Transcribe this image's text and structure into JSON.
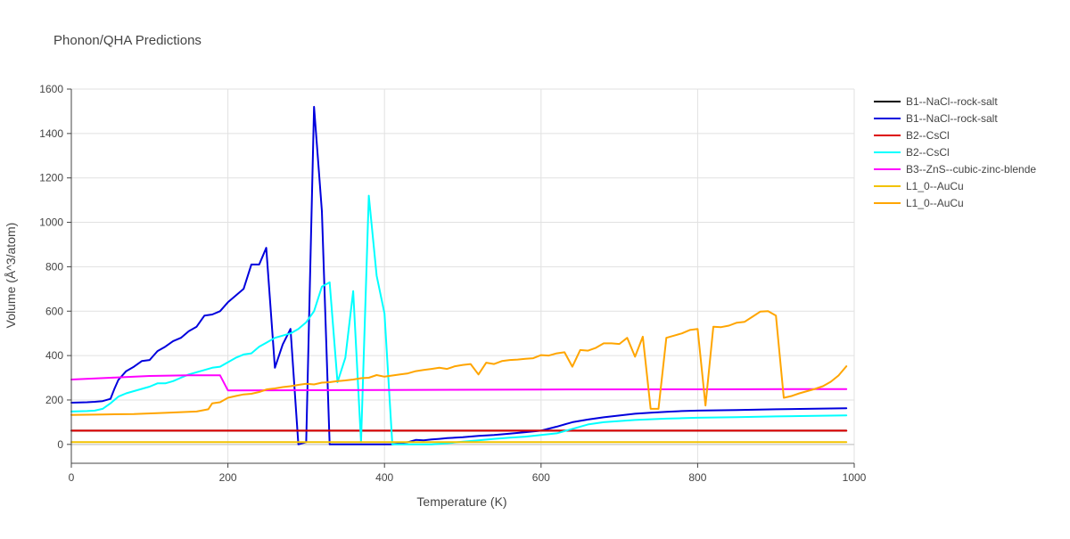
{
  "chart_data": {
    "type": "line",
    "title": "Phonon/QHA Predictions",
    "xlabel": "Temperature (K)",
    "ylabel": "Volume (Å^3/atom)",
    "xlim": [
      0,
      1000
    ],
    "ylim": [
      -85,
      1600
    ],
    "xticks": [
      0,
      200,
      400,
      600,
      800,
      1000
    ],
    "yticks": [
      0,
      200,
      400,
      600,
      800,
      1000,
      1200,
      1400,
      1600
    ],
    "grid": true,
    "legend_position": "right",
    "series": [
      {
        "name": "B1--NaCl--rock-salt",
        "color": "#000000",
        "x": [
          0,
          990
        ],
        "y": [
          62,
          62
        ]
      },
      {
        "name": "B1--NaCl--rock-salt",
        "color": "#0000dd",
        "x": [
          0,
          20,
          30,
          40,
          50,
          55,
          60,
          70,
          80,
          90,
          100,
          110,
          120,
          130,
          140,
          150,
          160,
          170,
          180,
          190,
          200,
          210,
          220,
          230,
          240,
          249,
          260,
          270,
          280,
          290,
          300,
          310,
          320,
          330,
          340,
          350,
          360,
          370,
          380,
          390,
          400,
          410,
          420,
          430,
          440,
          450,
          460,
          470,
          480,
          490,
          500,
          520,
          540,
          560,
          580,
          600,
          620,
          640,
          660,
          680,
          700,
          720,
          740,
          760,
          780,
          800,
          850,
          900,
          950,
          990
        ],
        "y": [
          188,
          190,
          192,
          195,
          205,
          250,
          290,
          330,
          350,
          375,
          380,
          420,
          440,
          465,
          480,
          510,
          530,
          580,
          585,
          600,
          640,
          670,
          700,
          810,
          810,
          885,
          345,
          450,
          520,
          0,
          10,
          1520,
          1050,
          0,
          0,
          0,
          0,
          0,
          0,
          0,
          0,
          0,
          5,
          10,
          20,
          18,
          22,
          25,
          28,
          30,
          32,
          38,
          42,
          48,
          55,
          62,
          80,
          100,
          112,
          122,
          130,
          138,
          143,
          147,
          150,
          152,
          155,
          158,
          161,
          163
        ]
      },
      {
        "name": "B2--CsCl",
        "color": "#dd0000",
        "x": [
          0,
          990
        ],
        "y": [
          62,
          62
        ]
      },
      {
        "name": "B2--CsCl",
        "color": "#00ffff",
        "x": [
          0,
          20,
          30,
          40,
          50,
          60,
          70,
          80,
          90,
          100,
          110,
          120,
          130,
          140,
          150,
          160,
          170,
          180,
          190,
          200,
          210,
          220,
          230,
          240,
          250,
          260,
          270,
          280,
          290,
          300,
          310,
          320,
          330,
          340,
          350,
          360,
          370,
          380,
          390,
          400,
          410,
          420,
          430,
          440,
          460,
          480,
          500,
          520,
          540,
          560,
          580,
          600,
          620,
          640,
          660,
          680,
          700,
          720,
          740,
          760,
          780,
          800,
          850,
          900,
          950,
          990
        ],
        "y": [
          148,
          150,
          152,
          160,
          185,
          215,
          230,
          240,
          250,
          260,
          275,
          275,
          285,
          300,
          315,
          325,
          335,
          345,
          350,
          370,
          390,
          405,
          410,
          440,
          460,
          480,
          490,
          500,
          520,
          550,
          600,
          710,
          730,
          280,
          390,
          690,
          10,
          1120,
          760,
          590,
          0,
          0,
          0,
          0,
          0,
          5,
          12,
          18,
          25,
          30,
          35,
          42,
          50,
          70,
          90,
          100,
          105,
          110,
          113,
          116,
          118,
          120,
          123,
          126,
          129,
          131
        ]
      },
      {
        "name": "B3--ZnS--cubic-zinc-blende",
        "color": "#ff00ff",
        "x": [
          0,
          50,
          100,
          150,
          190,
          200,
          400,
          600,
          800,
          990
        ],
        "y": [
          292,
          300,
          308,
          311,
          311,
          243,
          245,
          247,
          248,
          249
        ]
      },
      {
        "name": "L1_0--AuCu",
        "color": "#f2c200",
        "x": [
          0,
          990
        ],
        "y": [
          10,
          10
        ]
      },
      {
        "name": "L1_0--AuCu",
        "color": "#ffa500",
        "x": [
          0,
          40,
          80,
          120,
          160,
          175,
          180,
          190,
          200,
          210,
          220,
          230,
          240,
          250,
          260,
          270,
          280,
          290,
          300,
          310,
          320,
          330,
          340,
          350,
          360,
          370,
          380,
          390,
          400,
          410,
          420,
          430,
          440,
          450,
          460,
          470,
          480,
          490,
          500,
          510,
          520,
          530,
          540,
          550,
          560,
          570,
          580,
          590,
          600,
          610,
          620,
          630,
          640,
          650,
          660,
          670,
          680,
          690,
          700,
          710,
          720,
          730,
          740,
          750,
          760,
          770,
          780,
          790,
          800,
          810,
          820,
          830,
          840,
          850,
          860,
          870,
          880,
          890,
          900,
          910,
          920,
          930,
          940,
          950,
          960,
          970,
          980,
          990
        ],
        "y": [
          133,
          135,
          137,
          142,
          148,
          158,
          185,
          190,
          210,
          218,
          225,
          228,
          236,
          248,
          252,
          258,
          262,
          268,
          273,
          270,
          278,
          280,
          285,
          288,
          292,
          298,
          300,
          312,
          305,
          310,
          315,
          320,
          330,
          335,
          340,
          345,
          340,
          352,
          358,
          362,
          315,
          368,
          362,
          375,
          380,
          382,
          385,
          388,
          402,
          400,
          410,
          415,
          350,
          425,
          422,
          435,
          455,
          455,
          452,
          480,
          395,
          485,
          160,
          160,
          480,
          490,
          500,
          515,
          520,
          175,
          530,
          528,
          535,
          548,
          552,
          575,
          598,
          600,
          580,
          210,
          218,
          230,
          240,
          250,
          262,
          282,
          310,
          352
        ]
      }
    ]
  }
}
